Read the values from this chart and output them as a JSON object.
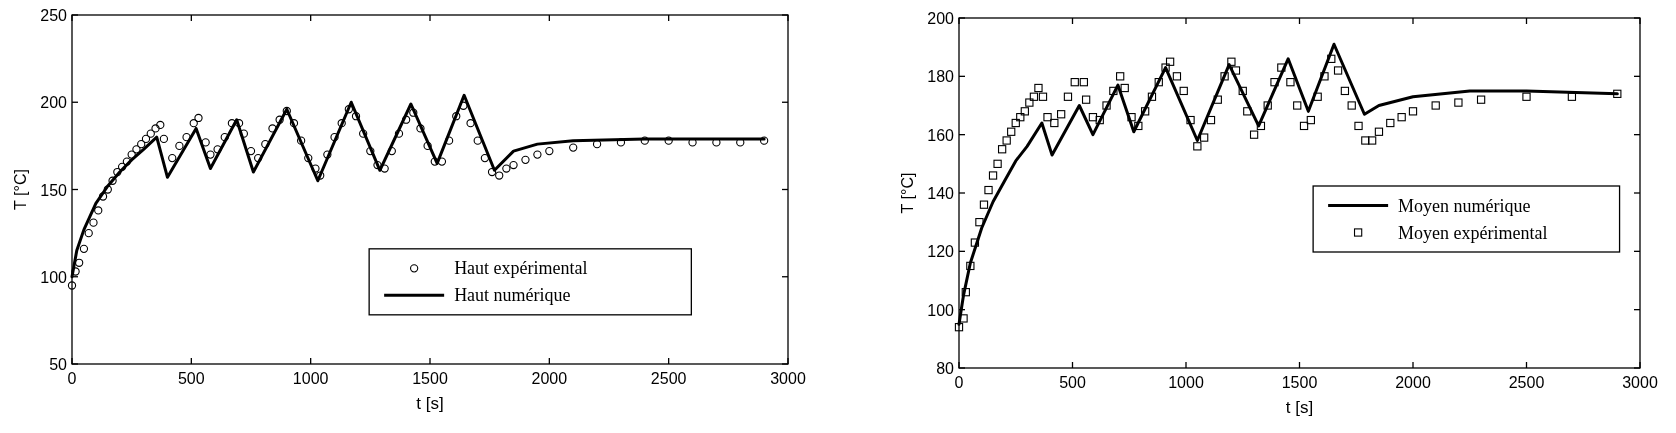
{
  "chart_data": [
    {
      "type": "line",
      "xlabel": "t [s]",
      "ylabel": "T [°C]",
      "xlim": [
        0,
        3000
      ],
      "xticks": [
        0,
        500,
        1000,
        1500,
        2000,
        2500,
        3000
      ],
      "ylim": [
        50,
        250
      ],
      "yticks": [
        50,
        100,
        150,
        200,
        250
      ],
      "grid": false,
      "legend": "bottom right",
      "series": [
        {
          "name": "Haut expérimental",
          "type": "scatter",
          "marker": "circle",
          "color": "#000000",
          "x": [
            0,
            15,
            30,
            50,
            70,
            90,
            110,
            130,
            150,
            170,
            190,
            210,
            230,
            250,
            270,
            290,
            310,
            330,
            350,
            370,
            385,
            420,
            450,
            480,
            510,
            530,
            560,
            580,
            610,
            640,
            670,
            700,
            720,
            750,
            780,
            810,
            840,
            870,
            900,
            930,
            960,
            990,
            1020,
            1040,
            1070,
            1100,
            1130,
            1160,
            1190,
            1220,
            1250,
            1280,
            1310,
            1340,
            1370,
            1400,
            1430,
            1460,
            1490,
            1520,
            1550,
            1580,
            1610,
            1640,
            1670,
            1700,
            1730,
            1760,
            1790,
            1820,
            1850,
            1900,
            1950,
            2000,
            2100,
            2200,
            2300,
            2400,
            2500,
            2600,
            2700,
            2800,
            2900
          ],
          "values": [
            95,
            103,
            108,
            116,
            125,
            131,
            138,
            146,
            150,
            155,
            160,
            163,
            166,
            170,
            173,
            176,
            179,
            182,
            185,
            187,
            179,
            168,
            175,
            180,
            188,
            191,
            177,
            170,
            173,
            180,
            188,
            188,
            182,
            172,
            168,
            176,
            185,
            190,
            195,
            188,
            178,
            168,
            162,
            158,
            170,
            180,
            188,
            196,
            192,
            182,
            172,
            164,
            162,
            172,
            182,
            190,
            194,
            185,
            175,
            166,
            166,
            178,
            192,
            198,
            188,
            178,
            168,
            160,
            158,
            162,
            164,
            167,
            170,
            172,
            174,
            176,
            177,
            178,
            178,
            177,
            177,
            177,
            178
          ]
        },
        {
          "name": "Haut numérique",
          "marker": "none",
          "line_style": "solid",
          "color": "#000000",
          "x": [
            0,
            20,
            50,
            100,
            150,
            200,
            250,
            300,
            355,
            400,
            520,
            580,
            690,
            760,
            900,
            1030,
            1170,
            1290,
            1420,
            1530,
            1643,
            1770,
            1850,
            1950,
            2100,
            2400,
            2900
          ],
          "values": [
            100,
            115,
            127,
            142,
            152,
            160,
            167,
            173,
            180,
            157,
            185,
            162,
            190,
            160,
            196,
            155,
            200,
            161,
            199,
            165,
            204,
            161,
            172,
            176,
            178,
            179,
            179
          ]
        }
      ]
    },
    {
      "type": "line",
      "xlabel": "t [s]",
      "ylabel": "T [°C]",
      "xlim": [
        0,
        3000
      ],
      "xticks": [
        0,
        500,
        1000,
        1500,
        2000,
        2500,
        3000
      ],
      "ylim": [
        80,
        200
      ],
      "yticks": [
        80,
        100,
        120,
        140,
        160,
        180,
        200
      ],
      "grid": false,
      "legend": "right",
      "series": [
        {
          "name": "Moyen numérique",
          "marker": "none",
          "line_style": "solid",
          "color": "#000000",
          "x": [
            0,
            20,
            50,
            100,
            150,
            200,
            250,
            300,
            365,
            410,
            530,
            590,
            700,
            770,
            910,
            1050,
            1190,
            1320,
            1450,
            1539,
            1652,
            1786,
            1850,
            2000,
            2250,
            2500,
            2900
          ],
          "values": [
            95,
            105,
            116,
            128,
            137,
            144,
            151,
            156,
            164,
            153,
            170,
            160,
            177,
            161,
            183,
            158,
            184,
            163,
            186,
            168,
            191,
            167,
            170,
            173,
            175,
            175,
            174
          ]
        },
        {
          "name": "Moyen expérimental",
          "type": "scatter",
          "marker": "square",
          "color": "#000000",
          "x": [
            0,
            20,
            30,
            50,
            70,
            90,
            110,
            130,
            150,
            170,
            190,
            210,
            230,
            250,
            270,
            290,
            310,
            330,
            350,
            370,
            390,
            420,
            450,
            480,
            510,
            550,
            560,
            590,
            620,
            650,
            680,
            710,
            730,
            760,
            790,
            820,
            850,
            880,
            910,
            930,
            960,
            990,
            1020,
            1050,
            1080,
            1110,
            1140,
            1170,
            1200,
            1220,
            1250,
            1270,
            1300,
            1330,
            1360,
            1390,
            1420,
            1460,
            1490,
            1520,
            1550,
            1580,
            1610,
            1640,
            1670,
            1700,
            1730,
            1760,
            1790,
            1820,
            1850,
            1900,
            1950,
            2000,
            2100,
            2200,
            2300,
            2500,
            2700,
            2900
          ],
          "values": [
            94,
            97,
            106,
            115,
            123,
            130,
            136,
            141,
            146,
            150,
            155,
            158,
            161,
            164,
            166,
            168,
            171,
            173,
            176,
            173,
            166,
            164,
            167,
            173,
            178,
            178,
            172,
            166,
            165,
            170,
            175,
            180,
            176,
            166,
            163,
            168,
            173,
            178,
            183,
            185,
            180,
            175,
            165,
            156,
            159,
            165,
            172,
            180,
            185,
            182,
            175,
            168,
            160,
            163,
            170,
            178,
            183,
            178,
            170,
            163,
            165,
            173,
            180,
            186,
            182,
            175,
            170,
            163,
            158,
            158,
            161,
            164,
            166,
            168,
            170,
            171,
            172,
            173,
            173,
            174
          ]
        }
      ]
    }
  ]
}
